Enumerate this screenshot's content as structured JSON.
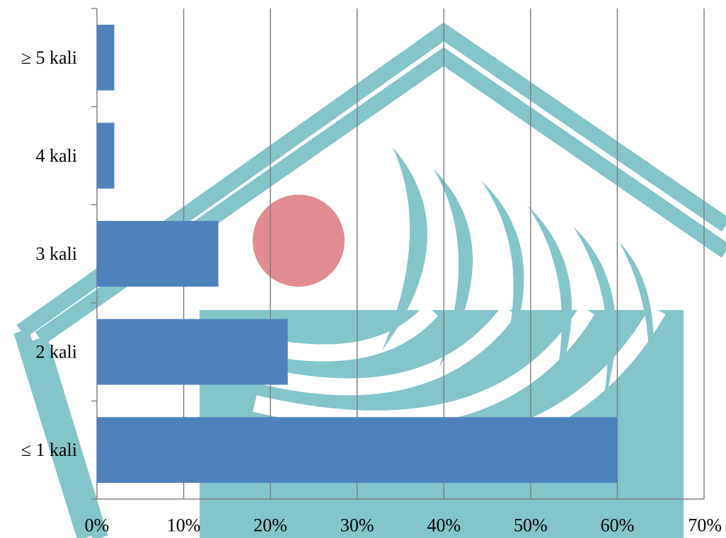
{
  "chart_data": {
    "type": "bar",
    "orientation": "horizontal",
    "categories": [
      "≤ 1 kali",
      "2 kali",
      "3 kali",
      "4 kali",
      "≥ 5 kali"
    ],
    "values": [
      60,
      22,
      14,
      2,
      2
    ],
    "xlim": [
      0,
      70
    ],
    "xticks": [
      0,
      10,
      20,
      30,
      40,
      50,
      60,
      70
    ],
    "xtick_labels": [
      "0%",
      "10%",
      "20%",
      "30%",
      "40%",
      "50%",
      "60%",
      "70%"
    ],
    "title": "",
    "xlabel": "",
    "ylabel": "",
    "grid": "vertical",
    "legend": "none",
    "colors": {
      "bar": "#4f81bd",
      "grid": "#808080",
      "watermark": "#84c4cb",
      "watermark_dot": "#e08c90"
    }
  }
}
